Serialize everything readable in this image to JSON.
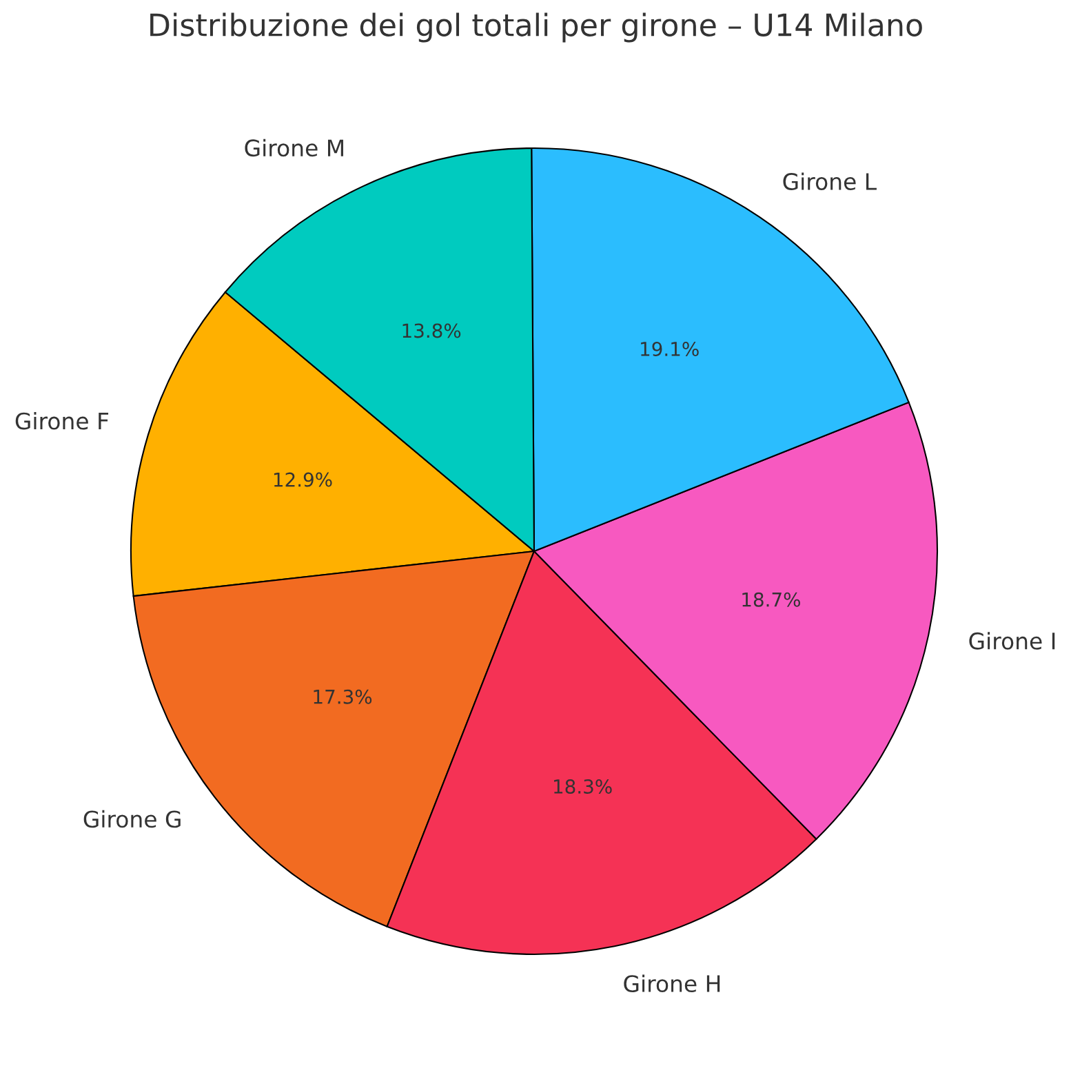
{
  "chart_data": {
    "type": "pie",
    "title": "Distribuzione dei gol totali per girone – U14 Milano",
    "categories": [
      "Girone F",
      "Girone G",
      "Girone H",
      "Girone I",
      "Girone L",
      "Girone M"
    ],
    "values": [
      12.9,
      17.3,
      18.3,
      18.7,
      19.1,
      13.8
    ],
    "colors": [
      "#ffb000",
      "#f26b21",
      "#f53255",
      "#f759c0",
      "#2bbdfe",
      "#00cbbf"
    ],
    "value_labels": [
      "12.9%",
      "17.3%",
      "18.3%",
      "18.7%",
      "19.1%",
      "13.8%"
    ]
  }
}
